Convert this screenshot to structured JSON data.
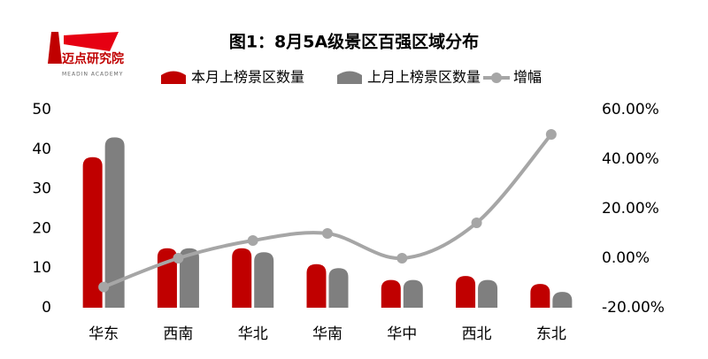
{
  "logo": {
    "name": "迈点研究院",
    "subtitle": "MEADIN ACADEMY"
  },
  "chart_data": {
    "type": "bar_line",
    "title": "图1：8月5A级景区百强区域分布",
    "categories": [
      "华东",
      "西南",
      "华北",
      "华南",
      "华中",
      "西北",
      "东北"
    ],
    "series": [
      {
        "name": "本月上榜景区数量",
        "color": "#c00000",
        "values": [
          38,
          15,
          15,
          11,
          7,
          8,
          6
        ]
      },
      {
        "name": "上月上榜景区数量",
        "color": "#7f7f7f",
        "values": [
          43,
          15,
          14,
          10,
          7,
          7,
          4
        ]
      },
      {
        "name": "增幅",
        "color": "#a6a6a6",
        "axis": "y2",
        "values": [
          -11.63,
          0,
          7.14,
          10,
          0,
          14.29,
          50
        ]
      }
    ],
    "ylim": [
      0,
      50
    ],
    "yticks": [
      0,
      10,
      20,
      30,
      40,
      50
    ],
    "y2lim": [
      -20,
      60
    ],
    "y2ticks": [
      {
        "value": -20,
        "label": "-20.00%"
      },
      {
        "value": 0,
        "label": "0.00%"
      },
      {
        "value": 20,
        "label": "20.00%"
      },
      {
        "value": 40,
        "label": "40.00%"
      },
      {
        "value": 60,
        "label": "60.00%"
      }
    ]
  }
}
